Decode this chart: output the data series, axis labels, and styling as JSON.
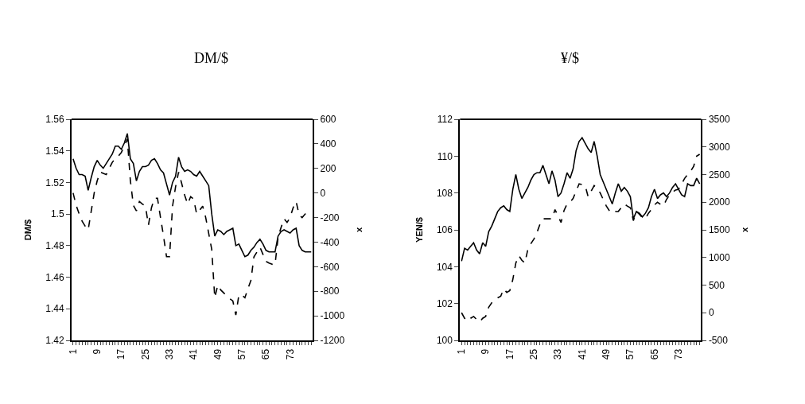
{
  "chart_data": [
    {
      "type": "line",
      "title": "DM/$",
      "ylabel": "DM/$",
      "y2label": "x",
      "categories": [
        "1",
        null,
        null,
        null,
        null,
        null,
        null,
        null,
        "9",
        null,
        null,
        null,
        null,
        null,
        null,
        null,
        "17",
        null,
        null,
        null,
        null,
        null,
        null,
        null,
        "25",
        null,
        null,
        null,
        null,
        null,
        null,
        null,
        "33",
        null,
        null,
        null,
        null,
        null,
        null,
        null,
        "41",
        null,
        null,
        null,
        null,
        null,
        null,
        null,
        "49",
        null,
        null,
        null,
        null,
        null,
        null,
        null,
        "57",
        null,
        null,
        null,
        null,
        null,
        null,
        null,
        "65",
        null,
        null,
        null,
        null,
        null,
        null,
        null,
        "73",
        null,
        null,
        null,
        null,
        null,
        null,
        null
      ],
      "series": [
        {
          "color": "#000000",
          "line_style": "solid",
          "values": [
            1.535,
            1.529,
            1.525,
            1.525,
            1.524,
            1.515,
            1.523,
            1.53,
            1.534,
            1.531,
            1.529,
            1.532,
            1.535,
            1.538,
            1.543,
            1.543,
            1.541,
            1.545,
            1.551,
            1.535,
            1.532,
            1.521,
            1.527,
            1.53,
            1.53,
            1.531,
            1.534,
            1.535,
            1.532,
            1.528,
            1.526,
            1.519,
            1.512,
            1.52,
            1.524,
            1.536,
            1.53,
            1.527,
            1.528,
            1.527,
            1.525,
            1.524,
            1.527,
            1.524,
            1.521,
            1.518,
            1.5,
            1.486,
            1.49,
            1.489,
            1.487,
            1.489,
            1.49,
            1.491,
            1.48,
            1.481,
            1.477,
            1.473,
            1.474,
            1.477,
            1.479,
            1.482,
            1.484,
            1.481,
            1.477,
            1.476,
            1.476,
            1.476,
            1.486,
            1.489,
            1.49,
            1.489,
            1.488,
            1.49,
            1.491,
            1.48,
            1.477,
            1.476,
            1.476,
            1.476
          ]
        },
        {
          "color": "#000000",
          "line_style": "dashed",
          "axis": "y2",
          "values": [
            0,
            -100,
            -170,
            -230,
            -270,
            -300,
            -150,
            0,
            100,
            170,
            160,
            150,
            200,
            250,
            280,
            300,
            330,
            380,
            440,
            100,
            -100,
            -146,
            -69,
            -90,
            -107,
            -261,
            -120,
            -43,
            -43,
            -200,
            -350,
            -519,
            -519,
            -107,
            50,
            170,
            80,
            -17,
            -90,
            -30,
            -50,
            -171,
            -140,
            -107,
            -200,
            -330,
            -460,
            -853,
            -750,
            -790,
            -814,
            -840,
            -860,
            -879,
            -994,
            -830,
            -830,
            -853,
            -780,
            -711,
            -520,
            -480,
            -441,
            -500,
            -557,
            -570,
            -580,
            -583,
            -364,
            -280,
            -210,
            -240,
            -200,
            -120,
            -69,
            -180,
            -200,
            -171,
            -160,
            -150
          ]
        }
      ],
      "ylim": [
        1.42,
        1.56
      ],
      "yticks": [
        1.42,
        1.44,
        1.46,
        1.48,
        1.5,
        1.52,
        1.54,
        1.56
      ],
      "y2lim": [
        -1200,
        600
      ],
      "y2ticks": [
        -1200,
        -1000,
        -800,
        -600,
        -400,
        -200,
        0,
        200,
        400,
        600
      ],
      "marker": "none"
    },
    {
      "type": "line",
      "title": "¥/$",
      "ylabel": "YEN/$",
      "y2label": "x",
      "categories": [
        "1",
        null,
        null,
        null,
        null,
        null,
        null,
        null,
        "9",
        null,
        null,
        null,
        null,
        null,
        null,
        null,
        "17",
        null,
        null,
        null,
        null,
        null,
        null,
        null,
        "25",
        null,
        null,
        null,
        null,
        null,
        null,
        null,
        "33",
        null,
        null,
        null,
        null,
        null,
        null,
        null,
        "41",
        null,
        null,
        null,
        null,
        null,
        null,
        null,
        "49",
        null,
        null,
        null,
        null,
        null,
        null,
        null,
        "57",
        null,
        null,
        null,
        null,
        null,
        null,
        null,
        "65",
        null,
        null,
        null,
        null,
        null,
        null,
        null,
        "73",
        null,
        null,
        null,
        null,
        null,
        null,
        null
      ],
      "series": [
        {
          "color": "#000000",
          "line_style": "solid",
          "values": [
            104.3,
            105.0,
            104.9,
            105.1,
            105.3,
            104.9,
            104.7,
            105.3,
            105.1,
            105.9,
            106.2,
            106.6,
            107.0,
            107.2,
            107.3,
            107.1,
            107.0,
            108.2,
            109.0,
            108.2,
            107.7,
            108.0,
            108.3,
            108.7,
            109.0,
            109.1,
            109.1,
            109.5,
            109.0,
            108.5,
            109.2,
            108.7,
            107.8,
            108.0,
            108.5,
            109.1,
            108.8,
            109.3,
            110.3,
            110.8,
            111.0,
            110.7,
            110.4,
            110.2,
            110.8,
            110.0,
            109.0,
            108.6,
            108.2,
            107.8,
            107.4,
            108.0,
            108.5,
            108.1,
            108.3,
            108.1,
            107.8,
            106.6,
            107.0,
            106.9,
            106.7,
            106.9,
            107.2,
            107.8,
            108.2,
            107.7,
            107.9,
            108.0,
            107.8,
            108.0,
            108.3,
            108.5,
            108.2,
            107.9,
            107.8,
            108.5,
            108.4,
            108.4,
            108.8,
            108.5
          ]
        },
        {
          "color": "#000000",
          "line_style": "dashed",
          "axis": "y2",
          "values": [
            0,
            -100,
            -150,
            -100,
            -67,
            -120,
            -167,
            -100,
            -67,
            100,
            180,
            233,
            270,
            300,
            433,
            367,
            400,
            600,
            900,
            1033,
            950,
            900,
            1150,
            1250,
            1333,
            1450,
            1600,
            1700,
            1700,
            1700,
            1700,
            1867,
            1750,
            1633,
            1850,
            1967,
            2000,
            2067,
            2200,
            2333,
            2320,
            2300,
            2100,
            2200,
            2300,
            2250,
            2167,
            2050,
            1933,
            1850,
            1800,
            1830,
            1833,
            1900,
            1967,
            1930,
            1900,
            1667,
            1833,
            1780,
            1720,
            1700,
            1800,
            1867,
            1950,
            2000,
            1960,
            1933,
            2050,
            2133,
            2180,
            2220,
            2233,
            2330,
            2430,
            2500,
            2560,
            2650,
            2833,
            2867
          ]
        }
      ],
      "ylim": [
        100,
        112
      ],
      "yticks": [
        100,
        102,
        104,
        106,
        108,
        110,
        112
      ],
      "y2lim": [
        -500,
        3500
      ],
      "y2ticks": [
        -500,
        0,
        500,
        1000,
        1500,
        2000,
        2500,
        3000,
        3500
      ],
      "marker": "none"
    }
  ]
}
